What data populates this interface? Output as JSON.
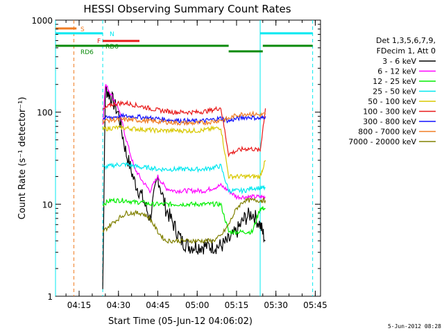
{
  "chart_data": {
    "type": "line",
    "title": "HESSI Observing Summary Count Rates",
    "xlabel": "Start Time (05-Jun-12 04:06:02)",
    "ylabel": "Count Rate (s⁻¹ detector⁻¹)",
    "y_scale": "log",
    "xlim": [
      "04:06",
      "05:47"
    ],
    "ylim": [
      1,
      1000
    ],
    "x_ticks": [
      "04:15",
      "04:30",
      "04:45",
      "05:00",
      "05:15",
      "05:30",
      "05:45"
    ],
    "y_ticks": [
      "1",
      "10",
      "100",
      "1000"
    ],
    "grid": false,
    "legend_header": [
      "Det 1,3,5,6,7,9,",
      "FDecim 1, Att 0"
    ],
    "legend_position": "right",
    "timestamp": "5-Jun-2012 08:28",
    "flags": [
      {
        "label": "S",
        "color": "#f07c22",
        "segments": [
          [
            "04:06",
            "04:14"
          ]
        ]
      },
      {
        "label": "N",
        "color": "#00e8f0",
        "segments": [
          [
            "04:06",
            "04:24"
          ],
          [
            "05:24",
            "05:44"
          ]
        ]
      },
      {
        "label": "F",
        "color": "#e81818",
        "segments": [
          [
            "04:24",
            "04:38"
          ]
        ]
      },
      {
        "label": "RD6",
        "color": "#0a8a0a",
        "segments": [
          [
            "04:06",
            "05:12"
          ],
          [
            "05:12",
            "05:25"
          ],
          [
            "05:25",
            "05:44"
          ]
        ]
      }
    ],
    "flag_texts": [
      "S",
      "N",
      "F",
      "RD6",
      "RD6"
    ],
    "vlines": [
      {
        "x": "04:13",
        "color": "#f07c22",
        "style": "dashed"
      },
      {
        "x": "04:24",
        "color": "#00e8f0",
        "style": "dashed"
      },
      {
        "x": "05:24",
        "color": "#00e8f0",
        "style": "solid"
      },
      {
        "x": "05:44",
        "color": "#00e8f0",
        "style": "dashed"
      },
      {
        "x": "04:06",
        "color": "#00e8f0",
        "style": "solid"
      }
    ],
    "series": [
      {
        "name": "3 - 6 keV",
        "color": "#000000",
        "points": [
          [
            "04:24",
            1.2
          ],
          [
            "04:25",
            180
          ],
          [
            "04:27",
            150
          ],
          [
            "04:30",
            95
          ],
          [
            "04:33",
            35
          ],
          [
            "04:36",
            18
          ],
          [
            "04:39",
            12
          ],
          [
            "04:42",
            7
          ],
          [
            "04:45",
            20
          ],
          [
            "04:48",
            9
          ],
          [
            "04:51",
            6
          ],
          [
            "04:54",
            4
          ],
          [
            "04:57",
            3.5
          ],
          [
            "05:00",
            3.5
          ],
          [
            "05:03",
            3.5
          ],
          [
            "05:06",
            3.5
          ],
          [
            "05:09",
            3.5
          ],
          [
            "05:12",
            4
          ],
          [
            "05:15",
            5
          ],
          [
            "05:18",
            7
          ],
          [
            "05:21",
            8
          ],
          [
            "05:24",
            6
          ],
          [
            "05:26",
            4
          ]
        ]
      },
      {
        "name": "6 - 12 keV",
        "color": "#ff00ff",
        "points": [
          [
            "04:24",
            70
          ],
          [
            "04:25",
            200
          ],
          [
            "04:27",
            160
          ],
          [
            "04:30",
            110
          ],
          [
            "04:33",
            50
          ],
          [
            "04:36",
            25
          ],
          [
            "04:39",
            18
          ],
          [
            "04:42",
            14
          ],
          [
            "04:45",
            20
          ],
          [
            "04:48",
            15
          ],
          [
            "04:51",
            14
          ],
          [
            "04:54",
            14
          ],
          [
            "04:57",
            14
          ],
          [
            "05:00",
            14
          ],
          [
            "05:03",
            14
          ],
          [
            "05:06",
            15
          ],
          [
            "05:09",
            16
          ],
          [
            "05:12",
            14
          ],
          [
            "05:15",
            12
          ],
          [
            "05:18",
            12
          ],
          [
            "05:21",
            12
          ],
          [
            "05:24",
            12
          ],
          [
            "05:26",
            12
          ]
        ]
      },
      {
        "name": "12 - 25 keV",
        "color": "#00ee00",
        "points": [
          [
            "04:24",
            10
          ],
          [
            "04:27",
            11
          ],
          [
            "04:30",
            11
          ],
          [
            "04:33",
            11
          ],
          [
            "04:36",
            10.5
          ],
          [
            "04:39",
            10.5
          ],
          [
            "04:42",
            10
          ],
          [
            "04:45",
            10
          ],
          [
            "04:48",
            10
          ],
          [
            "04:51",
            10
          ],
          [
            "04:54",
            10
          ],
          [
            "04:57",
            10
          ],
          [
            "05:00",
            10
          ],
          [
            "05:03",
            10
          ],
          [
            "05:06",
            10
          ],
          [
            "05:09",
            10
          ],
          [
            "05:12",
            5
          ],
          [
            "05:15",
            5
          ],
          [
            "05:18",
            5
          ],
          [
            "05:21",
            5
          ],
          [
            "05:24",
            9
          ],
          [
            "05:26",
            9
          ]
        ]
      },
      {
        "name": "25 - 50 keV",
        "color": "#00e8f0",
        "points": [
          [
            "04:24",
            25
          ],
          [
            "04:27",
            26
          ],
          [
            "04:30",
            27
          ],
          [
            "04:33",
            27
          ],
          [
            "04:36",
            26
          ],
          [
            "04:39",
            25
          ],
          [
            "04:42",
            25
          ],
          [
            "04:45",
            24
          ],
          [
            "04:48",
            24
          ],
          [
            "04:51",
            24
          ],
          [
            "04:54",
            24
          ],
          [
            "04:57",
            24
          ],
          [
            "05:00",
            24
          ],
          [
            "05:03",
            24
          ],
          [
            "05:06",
            25
          ],
          [
            "05:09",
            26
          ],
          [
            "05:12",
            14
          ],
          [
            "05:15",
            14
          ],
          [
            "05:18",
            14
          ],
          [
            "05:21",
            15
          ],
          [
            "05:24",
            15
          ],
          [
            "05:26",
            15
          ]
        ]
      },
      {
        "name": "50 - 100 keV",
        "color": "#d8c800",
        "points": [
          [
            "04:24",
            65
          ],
          [
            "04:27",
            67
          ],
          [
            "04:30",
            68
          ],
          [
            "04:33",
            67
          ],
          [
            "04:36",
            66
          ],
          [
            "04:39",
            65
          ],
          [
            "04:42",
            64
          ],
          [
            "04:45",
            63
          ],
          [
            "04:48",
            63
          ],
          [
            "04:51",
            63
          ],
          [
            "04:54",
            63
          ],
          [
            "04:57",
            63
          ],
          [
            "05:00",
            63
          ],
          [
            "05:03",
            64
          ],
          [
            "05:06",
            66
          ],
          [
            "05:09",
            68
          ],
          [
            "05:12",
            20
          ],
          [
            "05:15",
            20
          ],
          [
            "05:18",
            20
          ],
          [
            "05:21",
            20
          ],
          [
            "05:24",
            20
          ],
          [
            "05:26",
            30
          ]
        ]
      },
      {
        "name": "100 - 300 keV",
        "color": "#e81818",
        "points": [
          [
            "04:24",
            105
          ],
          [
            "04:27",
            120
          ],
          [
            "04:30",
            125
          ],
          [
            "04:33",
            125
          ],
          [
            "04:36",
            120
          ],
          [
            "04:39",
            115
          ],
          [
            "04:42",
            110
          ],
          [
            "04:45",
            105
          ],
          [
            "04:48",
            103
          ],
          [
            "04:51",
            100
          ],
          [
            "04:54",
            100
          ],
          [
            "04:57",
            100
          ],
          [
            "05:00",
            100
          ],
          [
            "05:03",
            102
          ],
          [
            "05:06",
            106
          ],
          [
            "05:09",
            112
          ],
          [
            "05:12",
            35
          ],
          [
            "05:15",
            38
          ],
          [
            "05:18",
            40
          ],
          [
            "05:21",
            40
          ],
          [
            "05:24",
            38
          ],
          [
            "05:26",
            110
          ]
        ]
      },
      {
        "name": "300 - 800 keV",
        "color": "#1010ff",
        "points": [
          [
            "04:24",
            85
          ],
          [
            "04:27",
            88
          ],
          [
            "04:30",
            90
          ],
          [
            "04:33",
            90
          ],
          [
            "04:36",
            90
          ],
          [
            "04:39",
            88
          ],
          [
            "04:42",
            86
          ],
          [
            "04:45",
            85
          ],
          [
            "04:48",
            83
          ],
          [
            "04:51",
            82
          ],
          [
            "04:54",
            81
          ],
          [
            "04:57",
            80
          ],
          [
            "05:00",
            80
          ],
          [
            "05:03",
            81
          ],
          [
            "05:06",
            83
          ],
          [
            "05:09",
            86
          ],
          [
            "05:12",
            80
          ],
          [
            "05:15",
            85
          ],
          [
            "05:18",
            88
          ],
          [
            "05:21",
            88
          ],
          [
            "05:24",
            85
          ],
          [
            "05:26",
            90
          ]
        ]
      },
      {
        "name": "800 - 7000 keV",
        "color": "#f07c22",
        "points": [
          [
            "04:24",
            80
          ],
          [
            "04:27",
            82
          ],
          [
            "04:30",
            83
          ],
          [
            "04:33",
            83
          ],
          [
            "04:36",
            82
          ],
          [
            "04:39",
            81
          ],
          [
            "04:42",
            80
          ],
          [
            "04:45",
            79
          ],
          [
            "04:48",
            78
          ],
          [
            "04:51",
            77
          ],
          [
            "04:54",
            76
          ],
          [
            "04:57",
            76
          ],
          [
            "05:00",
            76
          ],
          [
            "05:03",
            77
          ],
          [
            "05:06",
            79
          ],
          [
            "05:09",
            82
          ],
          [
            "05:12",
            85
          ],
          [
            "05:15",
            93
          ],
          [
            "05:18",
            96
          ],
          [
            "05:21",
            96
          ],
          [
            "05:24",
            93
          ],
          [
            "05:26",
            95
          ]
        ]
      },
      {
        "name": "7000 - 20000 keV",
        "color": "#808000",
        "points": [
          [
            "04:24",
            5
          ],
          [
            "04:27",
            6
          ],
          [
            "04:30",
            7
          ],
          [
            "04:33",
            8
          ],
          [
            "04:36",
            8
          ],
          [
            "04:39",
            8
          ],
          [
            "04:42",
            7
          ],
          [
            "04:45",
            5
          ],
          [
            "04:48",
            4
          ],
          [
            "04:51",
            4
          ],
          [
            "04:54",
            4
          ],
          [
            "04:57",
            4
          ],
          [
            "05:00",
            4
          ],
          [
            "05:03",
            4
          ],
          [
            "05:06",
            4
          ],
          [
            "05:09",
            4.5
          ],
          [
            "05:12",
            6
          ],
          [
            "05:15",
            9
          ],
          [
            "05:18",
            11
          ],
          [
            "05:21",
            11
          ],
          [
            "05:24",
            11
          ],
          [
            "05:26",
            11
          ]
        ]
      }
    ]
  }
}
